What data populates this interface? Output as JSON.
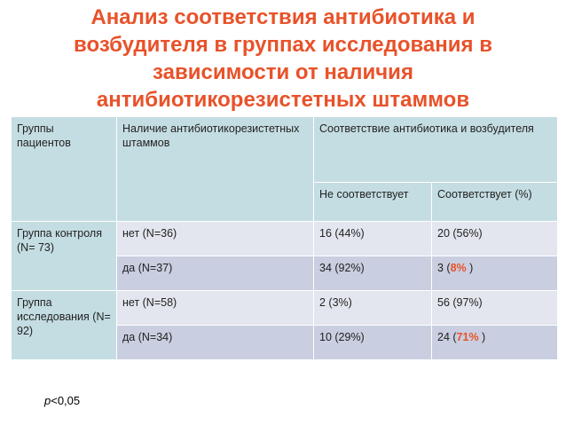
{
  "title": {
    "lines": [
      "Анализ соответствия антибиотика и",
      "возбудителя в группах исследования в",
      "зависимости от наличия",
      "антибиотикорезистетных штаммов"
    ]
  },
  "table": {
    "headers": {
      "groups": "Группы пациентов",
      "resistant": "Наличие антибиотикорезистетных штаммов",
      "match": "Соответствие антибиотика и возбудителя",
      "not_match": "Не соответствует",
      "matches_pct": "Соответствует (%)"
    },
    "rows": [
      {
        "group": "Группа контроля (N= 73)",
        "resistant": "нет (N=36)",
        "not_match": "16 (44%)",
        "match": "20 (56%)"
      },
      {
        "resistant": "да (N=37)",
        "not_match": "34 (92%)",
        "match_prefix": "3 (",
        "match_highlight": "8%",
        "match_suffix": " )"
      },
      {
        "group": "Группа исследования (N= 92)",
        "resistant": "нет (N=58)",
        "not_match": "2 (3%)",
        "match": "56 (97%)"
      },
      {
        "resistant": "да (N=34)",
        "not_match": "10 (29%)",
        "match_prefix": "24 (",
        "match_highlight": "71%",
        "match_suffix": " )"
      }
    ]
  },
  "footnote": {
    "p": "p",
    "rest": "<0,05"
  },
  "colors": {
    "accent": "#e8522a",
    "header_bg": "#c4dde2",
    "row_light": "#e3e6ee",
    "row_dark": "#c9cee0"
  }
}
